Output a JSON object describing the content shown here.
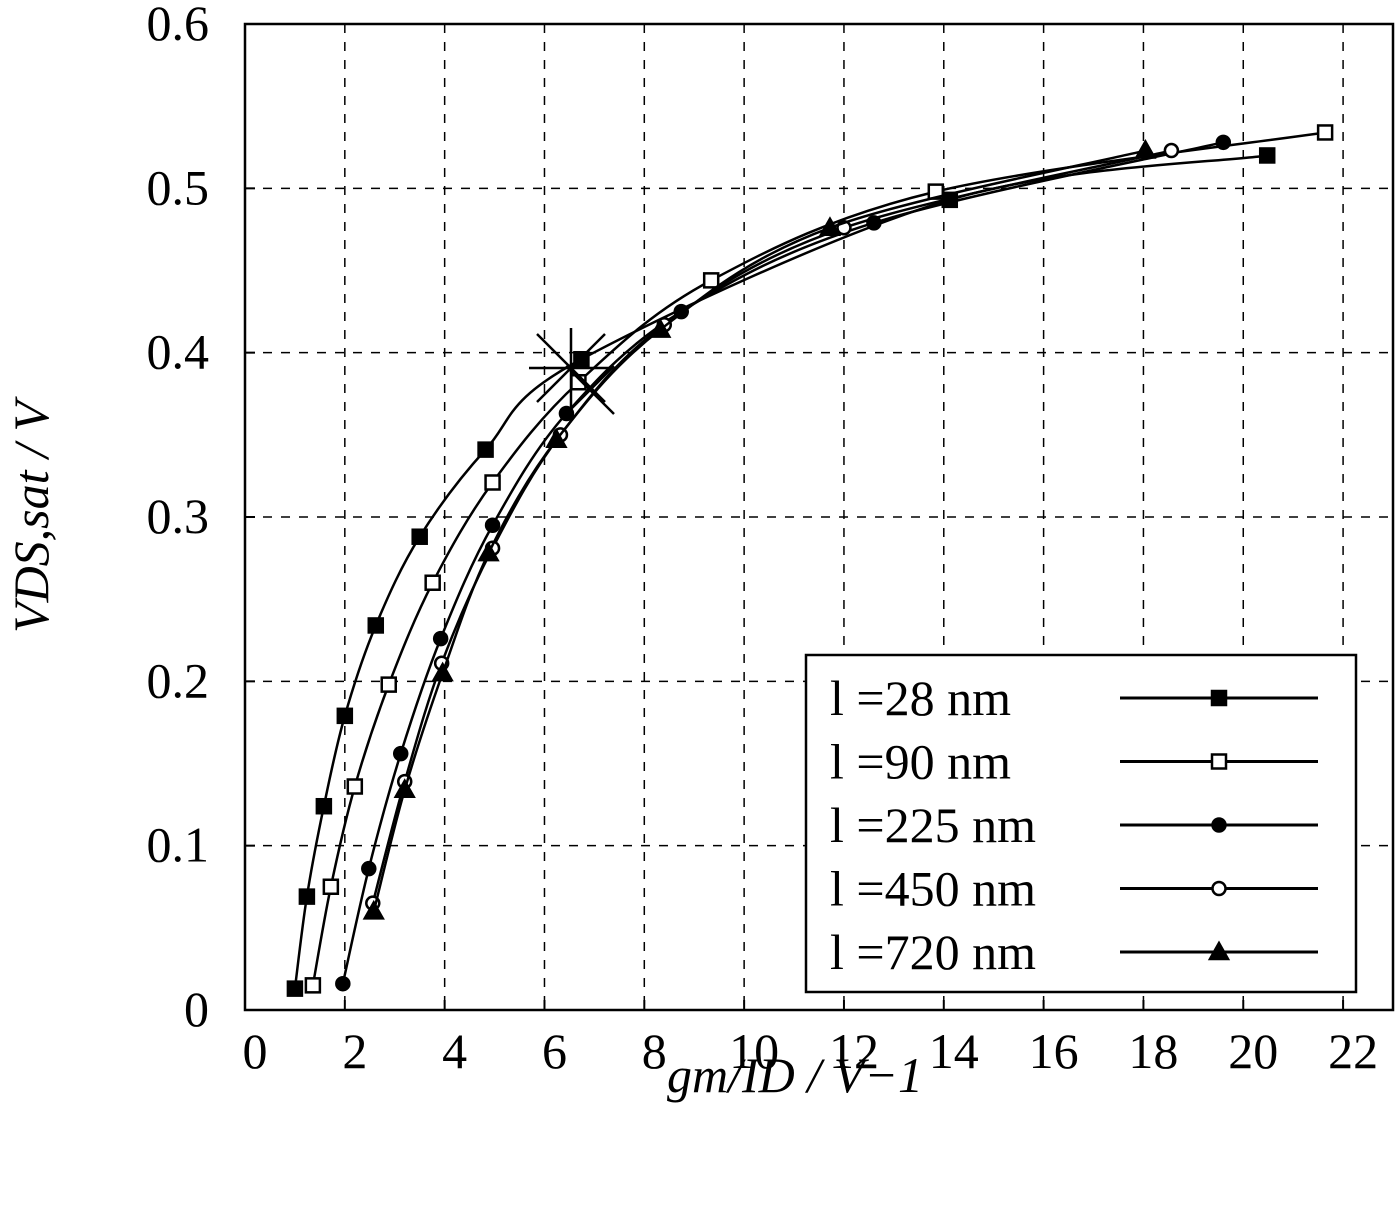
{
  "chart_data": {
    "type": "line",
    "xlabel": "gm/ID  /  V−1",
    "ylabel": "VDS,sat  /  V",
    "xlim": [
      0,
      23
    ],
    "ylim": [
      0,
      0.6
    ],
    "xticks": [
      0,
      2,
      4,
      6,
      8,
      10,
      12,
      14,
      16,
      18,
      20,
      22
    ],
    "yticks": [
      0,
      0.1,
      0.2,
      0.3,
      0.4,
      0.5,
      0.6
    ],
    "grid": true,
    "legend": "lower right",
    "series": [
      {
        "name": "l =28 nm",
        "color": "#000000",
        "marker": "square-filled",
        "x": [
          1.0,
          1.24,
          1.58,
          2.0,
          2.62,
          3.5,
          4.82,
          6.74,
          14.12,
          20.48
        ],
        "values": [
          0.013,
          0.069,
          0.124,
          0.179,
          0.234,
          0.288,
          0.341,
          0.396,
          0.493,
          0.52
        ]
      },
      {
        "name": "l =90 nm",
        "color": "#000000",
        "marker": "square-open",
        "x": [
          1.36,
          1.72,
          2.2,
          2.88,
          3.76,
          4.96,
          6.68,
          9.34,
          13.84,
          21.64
        ],
        "values": [
          0.015,
          0.075,
          0.136,
          0.198,
          0.26,
          0.321,
          0.382,
          0.444,
          0.498,
          0.534
        ]
      },
      {
        "name": "l =225 nm",
        "color": "#000000",
        "marker": "circle-filled",
        "x": [
          1.96,
          2.48,
          3.12,
          3.92,
          4.96,
          6.44,
          8.74,
          12.6,
          19.6
        ],
        "values": [
          0.016,
          0.086,
          0.156,
          0.226,
          0.295,
          0.363,
          0.425,
          0.479,
          0.528
        ]
      },
      {
        "name": "l =450 nm",
        "color": "#000000",
        "marker": "circle-open",
        "x": [
          2.56,
          3.2,
          3.94,
          4.96,
          6.32,
          8.4,
          12.0,
          18.56
        ],
        "values": [
          0.065,
          0.139,
          0.211,
          0.281,
          0.35,
          0.417,
          0.476,
          0.523
        ]
      },
      {
        "name": "l =720 nm",
        "color": "#000000",
        "marker": "triangle-filled",
        "x": [
          2.58,
          3.2,
          3.96,
          4.88,
          6.24,
          8.32,
          11.72,
          18.04
        ],
        "values": [
          0.06,
          0.134,
          0.205,
          0.278,
          0.347,
          0.414,
          0.476,
          0.523
        ]
      }
    ]
  }
}
